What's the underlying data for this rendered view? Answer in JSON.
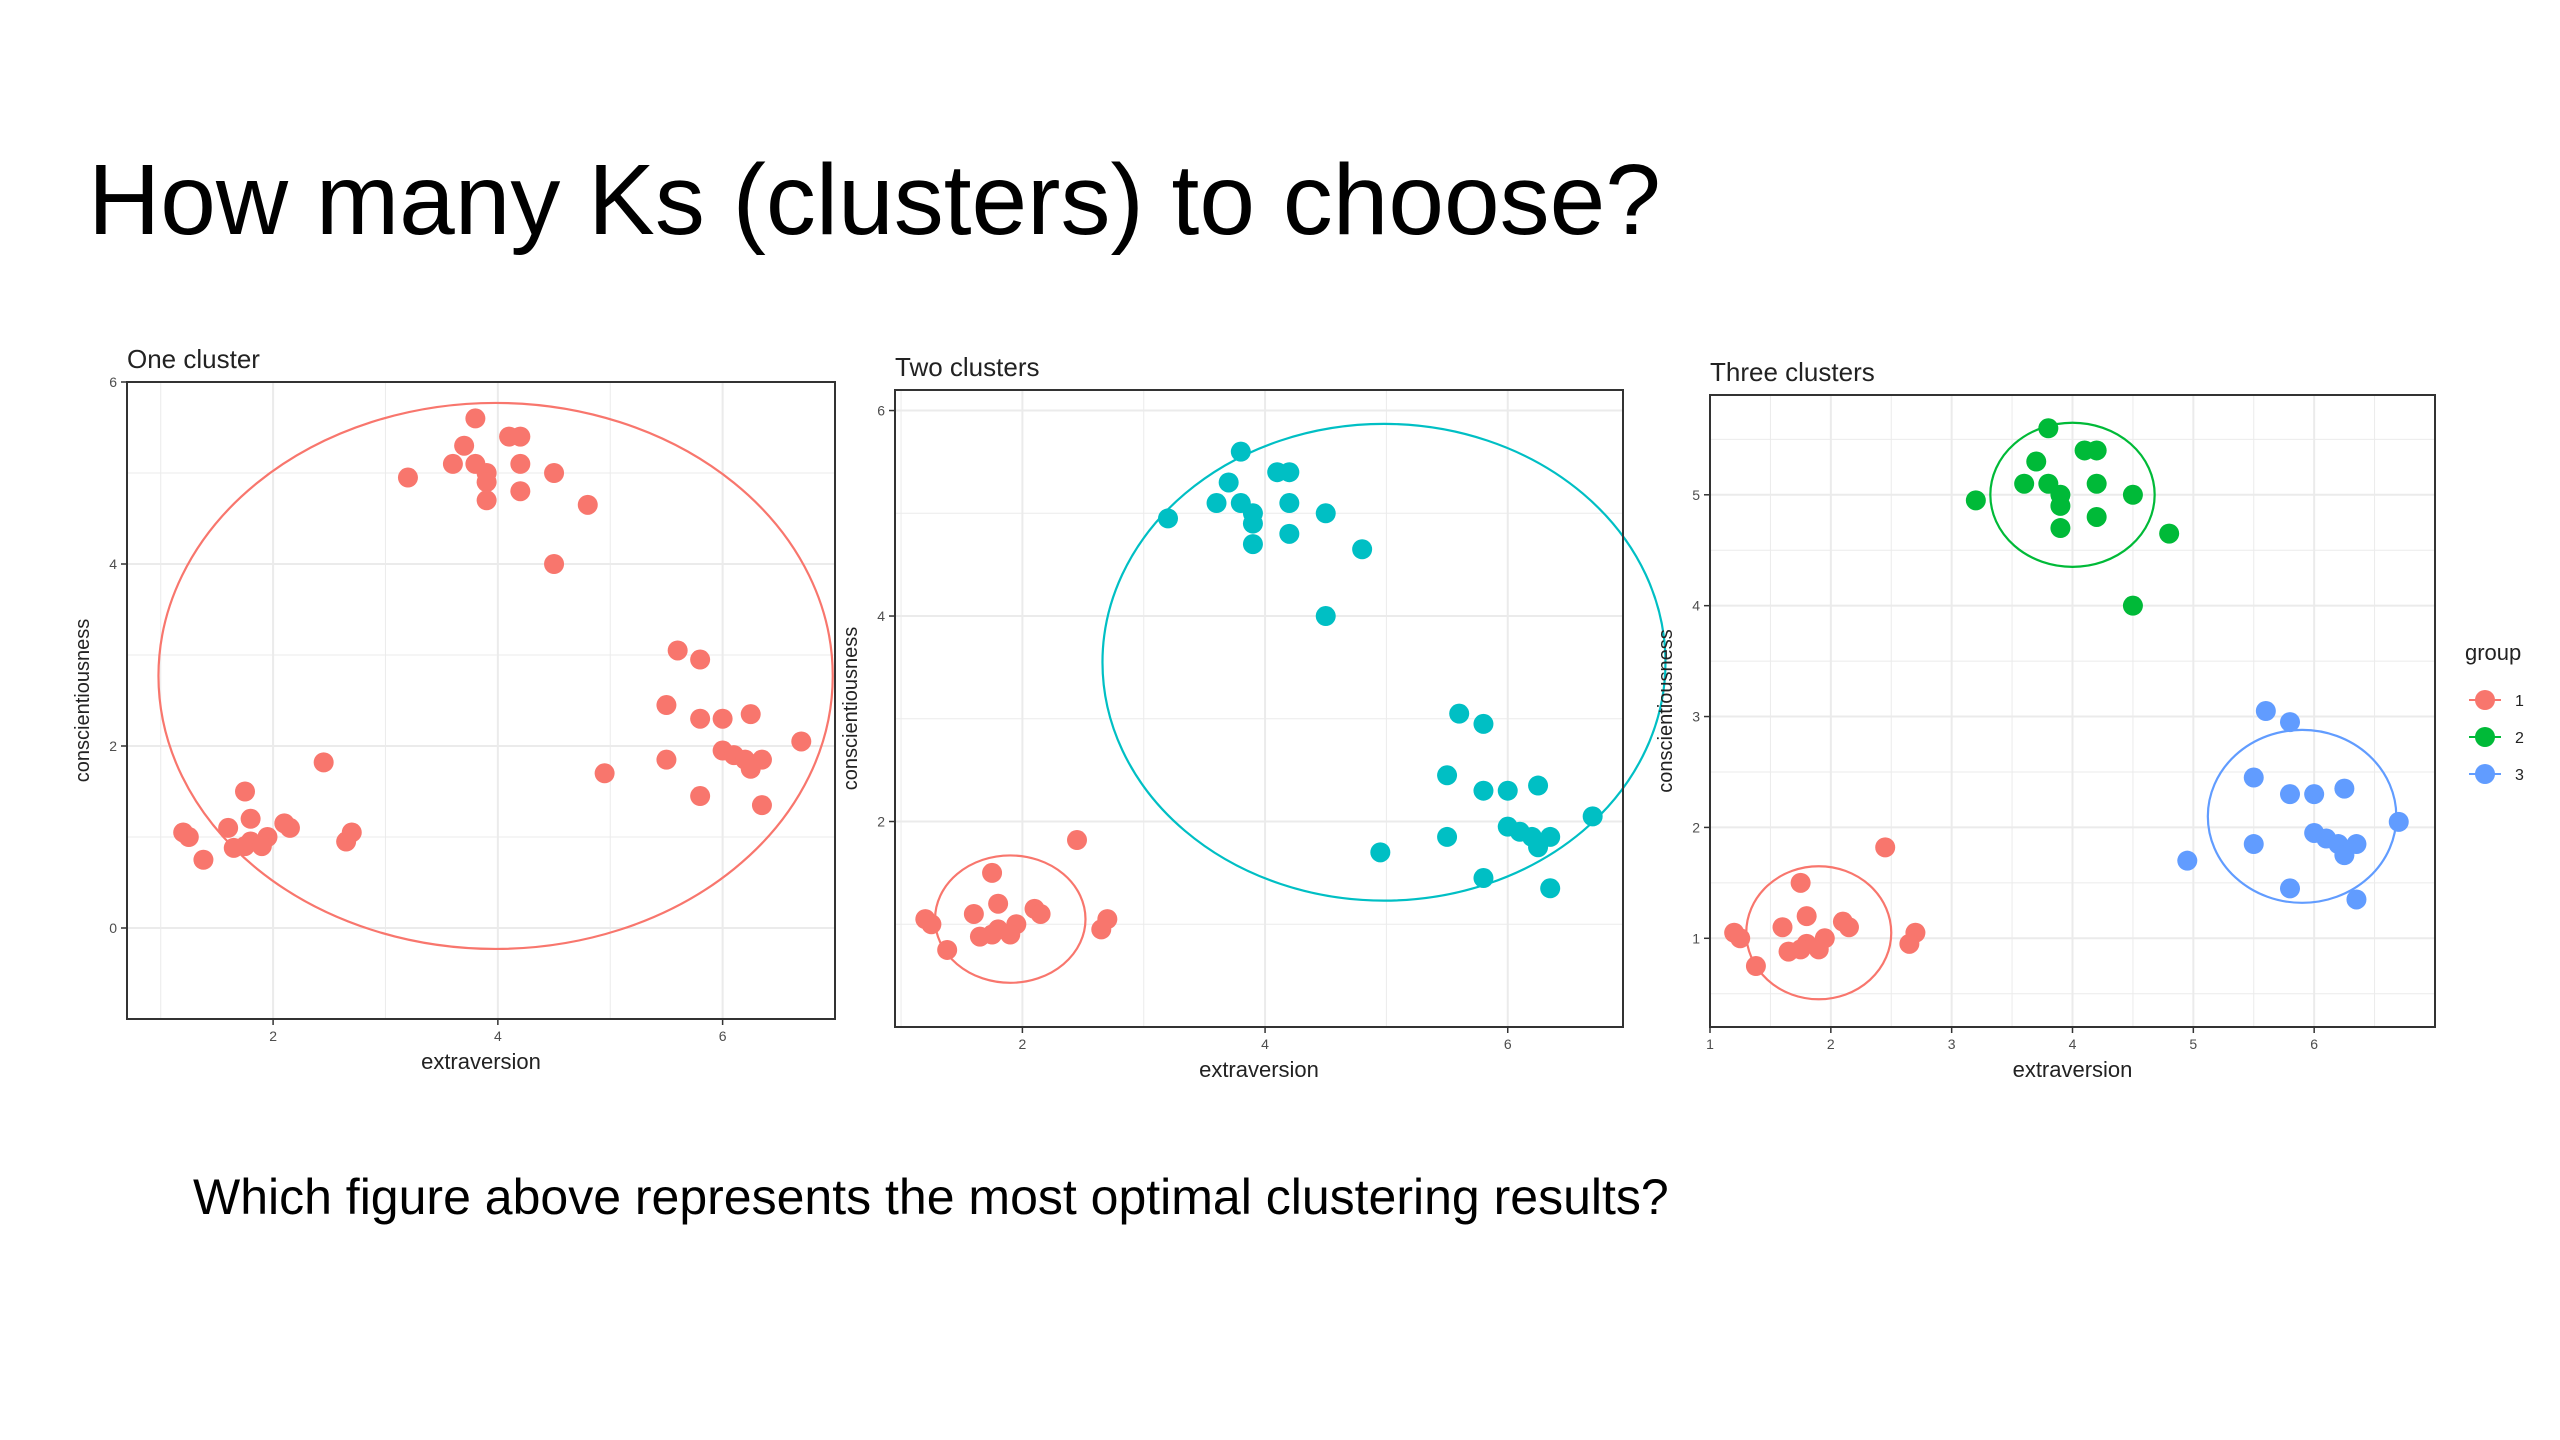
{
  "slide": {
    "title": "How many Ks (clusters) to choose?",
    "question": "Which figure above represents the most optimal clustering results?"
  },
  "colors": {
    "group1": "#F8766D",
    "group2": "#00BA38",
    "group3": "#619CFF",
    "teal": "#00BFC4",
    "grid": "#EBEBEB",
    "panel_border": "#333333"
  },
  "legend": {
    "title": "group",
    "entries": [
      {
        "label": "1",
        "color": "#F8766D"
      },
      {
        "label": "2",
        "color": "#00BA38"
      },
      {
        "label": "3",
        "color": "#619CFF"
      }
    ]
  },
  "chart_data": [
    {
      "type": "scatter",
      "title": "One cluster",
      "xlabel": "extraversion",
      "ylabel": "conscientiousness",
      "xlim": [
        0.7,
        7.0
      ],
      "ylim": [
        -1.0,
        6.0
      ],
      "xticks": [
        2,
        4,
        6
      ],
      "yticks": [
        0,
        2,
        4,
        6
      ],
      "grid": true,
      "points": [
        {
          "x": 3.8,
          "y": 5.6,
          "g": 1
        },
        {
          "x": 3.7,
          "y": 5.3,
          "g": 1
        },
        {
          "x": 4.1,
          "y": 5.4,
          "g": 1
        },
        {
          "x": 4.2,
          "y": 5.4,
          "g": 1
        },
        {
          "x": 3.6,
          "y": 5.1,
          "g": 1
        },
        {
          "x": 3.8,
          "y": 5.1,
          "g": 1
        },
        {
          "x": 3.9,
          "y": 5.0,
          "g": 1
        },
        {
          "x": 4.2,
          "y": 5.1,
          "g": 1
        },
        {
          "x": 3.2,
          "y": 4.95,
          "g": 1
        },
        {
          "x": 3.9,
          "y": 4.9,
          "g": 1
        },
        {
          "x": 4.5,
          "y": 5.0,
          "g": 1
        },
        {
          "x": 4.2,
          "y": 4.8,
          "g": 1
        },
        {
          "x": 3.9,
          "y": 4.7,
          "g": 1
        },
        {
          "x": 4.8,
          "y": 4.65,
          "g": 1
        },
        {
          "x": 4.5,
          "y": 4.0,
          "g": 1
        },
        {
          "x": 5.6,
          "y": 3.05,
          "g": 1
        },
        {
          "x": 5.8,
          "y": 2.95,
          "g": 1
        },
        {
          "x": 5.5,
          "y": 2.45,
          "g": 1
        },
        {
          "x": 5.8,
          "y": 2.3,
          "g": 1
        },
        {
          "x": 6.0,
          "y": 2.3,
          "g": 1
        },
        {
          "x": 6.25,
          "y": 2.35,
          "g": 1
        },
        {
          "x": 6.7,
          "y": 2.05,
          "g": 1
        },
        {
          "x": 6.0,
          "y": 1.95,
          "g": 1
        },
        {
          "x": 6.1,
          "y": 1.9,
          "g": 1
        },
        {
          "x": 6.2,
          "y": 1.85,
          "g": 1
        },
        {
          "x": 6.35,
          "y": 1.85,
          "g": 1
        },
        {
          "x": 5.5,
          "y": 1.85,
          "g": 1
        },
        {
          "x": 6.25,
          "y": 1.75,
          "g": 1
        },
        {
          "x": 4.95,
          "y": 1.7,
          "g": 1
        },
        {
          "x": 5.8,
          "y": 1.45,
          "g": 1
        },
        {
          "x": 6.35,
          "y": 1.35,
          "g": 1
        },
        {
          "x": 2.45,
          "y": 1.82,
          "g": 1
        },
        {
          "x": 1.75,
          "y": 1.5,
          "g": 1
        },
        {
          "x": 1.8,
          "y": 1.2,
          "g": 1
        },
        {
          "x": 1.6,
          "y": 1.1,
          "g": 1
        },
        {
          "x": 2.1,
          "y": 1.15,
          "g": 1
        },
        {
          "x": 2.15,
          "y": 1.1,
          "g": 1
        },
        {
          "x": 1.2,
          "y": 1.05,
          "g": 1
        },
        {
          "x": 1.25,
          "y": 1.0,
          "g": 1
        },
        {
          "x": 1.95,
          "y": 1.0,
          "g": 1
        },
        {
          "x": 1.8,
          "y": 0.95,
          "g": 1
        },
        {
          "x": 1.75,
          "y": 0.9,
          "g": 1
        },
        {
          "x": 1.9,
          "y": 0.9,
          "g": 1
        },
        {
          "x": 1.65,
          "y": 0.88,
          "g": 1
        },
        {
          "x": 2.7,
          "y": 1.05,
          "g": 1
        },
        {
          "x": 2.65,
          "y": 0.95,
          "g": 1
        },
        {
          "x": 1.38,
          "y": 0.75,
          "g": 1
        }
      ],
      "ellipses": [
        {
          "cx": 3.98,
          "cy": 2.77,
          "rx": 3.0,
          "ry": 3.0,
          "color": "#F8766D"
        }
      ]
    },
    {
      "type": "scatter",
      "title": "Two clusters",
      "xlabel": "extraversion",
      "ylabel": "conscientiousness",
      "xlim": [
        0.95,
        6.95
      ],
      "ylim": [
        0.0,
        6.2
      ],
      "xticks": [
        2,
        4,
        6
      ],
      "yticks": [
        2,
        4,
        6
      ],
      "grid": true,
      "points": [
        {
          "x": 3.8,
          "y": 5.6,
          "g": 2
        },
        {
          "x": 3.7,
          "y": 5.3,
          "g": 2
        },
        {
          "x": 4.1,
          "y": 5.4,
          "g": 2
        },
        {
          "x": 4.2,
          "y": 5.4,
          "g": 2
        },
        {
          "x": 3.6,
          "y": 5.1,
          "g": 2
        },
        {
          "x": 3.8,
          "y": 5.1,
          "g": 2
        },
        {
          "x": 3.9,
          "y": 5.0,
          "g": 2
        },
        {
          "x": 4.2,
          "y": 5.1,
          "g": 2
        },
        {
          "x": 3.2,
          "y": 4.95,
          "g": 2
        },
        {
          "x": 3.9,
          "y": 4.9,
          "g": 2
        },
        {
          "x": 4.5,
          "y": 5.0,
          "g": 2
        },
        {
          "x": 4.2,
          "y": 4.8,
          "g": 2
        },
        {
          "x": 3.9,
          "y": 4.7,
          "g": 2
        },
        {
          "x": 4.8,
          "y": 4.65,
          "g": 2
        },
        {
          "x": 4.5,
          "y": 4.0,
          "g": 2
        },
        {
          "x": 5.6,
          "y": 3.05,
          "g": 2
        },
        {
          "x": 5.8,
          "y": 2.95,
          "g": 2
        },
        {
          "x": 5.5,
          "y": 2.45,
          "g": 2
        },
        {
          "x": 5.8,
          "y": 2.3,
          "g": 2
        },
        {
          "x": 6.0,
          "y": 2.3,
          "g": 2
        },
        {
          "x": 6.25,
          "y": 2.35,
          "g": 2
        },
        {
          "x": 6.7,
          "y": 2.05,
          "g": 2
        },
        {
          "x": 6.0,
          "y": 1.95,
          "g": 2
        },
        {
          "x": 6.1,
          "y": 1.9,
          "g": 2
        },
        {
          "x": 6.2,
          "y": 1.85,
          "g": 2
        },
        {
          "x": 6.35,
          "y": 1.85,
          "g": 2
        },
        {
          "x": 5.5,
          "y": 1.85,
          "g": 2
        },
        {
          "x": 6.25,
          "y": 1.75,
          "g": 2
        },
        {
          "x": 4.95,
          "y": 1.7,
          "g": 2
        },
        {
          "x": 5.8,
          "y": 1.45,
          "g": 2
        },
        {
          "x": 6.35,
          "y": 1.35,
          "g": 2
        },
        {
          "x": 2.45,
          "y": 1.82,
          "g": 1
        },
        {
          "x": 1.75,
          "y": 1.5,
          "g": 1
        },
        {
          "x": 1.8,
          "y": 1.2,
          "g": 1
        },
        {
          "x": 1.6,
          "y": 1.1,
          "g": 1
        },
        {
          "x": 2.1,
          "y": 1.15,
          "g": 1
        },
        {
          "x": 2.15,
          "y": 1.1,
          "g": 1
        },
        {
          "x": 1.2,
          "y": 1.05,
          "g": 1
        },
        {
          "x": 1.25,
          "y": 1.0,
          "g": 1
        },
        {
          "x": 1.95,
          "y": 1.0,
          "g": 1
        },
        {
          "x": 1.8,
          "y": 0.95,
          "g": 1
        },
        {
          "x": 1.75,
          "y": 0.9,
          "g": 1
        },
        {
          "x": 1.9,
          "y": 0.9,
          "g": 1
        },
        {
          "x": 1.65,
          "y": 0.88,
          "g": 1
        },
        {
          "x": 2.7,
          "y": 1.05,
          "g": 1
        },
        {
          "x": 2.65,
          "y": 0.95,
          "g": 1
        },
        {
          "x": 1.38,
          "y": 0.75,
          "g": 1
        }
      ],
      "point_colors": {
        "1": "#F8766D",
        "2": "#00BFC4"
      },
      "ellipses": [
        {
          "cx": 1.9,
          "cy": 1.05,
          "rx": 0.62,
          "ry": 0.62,
          "color": "#F8766D"
        },
        {
          "cx": 4.98,
          "cy": 3.55,
          "rx": 2.32,
          "ry": 2.32,
          "color": "#00BFC4"
        }
      ]
    },
    {
      "type": "scatter",
      "title": "Three clusters",
      "xlabel": "extraversion",
      "ylabel": "conscientiousness",
      "xlim": [
        1.0,
        7.0
      ],
      "ylim": [
        0.2,
        5.9
      ],
      "xticks": [
        1,
        2,
        3,
        4,
        5,
        6
      ],
      "yticks": [
        1,
        2,
        3,
        4,
        5
      ],
      "grid": true,
      "points": [
        {
          "x": 3.8,
          "y": 5.6,
          "g": 2
        },
        {
          "x": 3.7,
          "y": 5.3,
          "g": 2
        },
        {
          "x": 4.1,
          "y": 5.4,
          "g": 2
        },
        {
          "x": 4.2,
          "y": 5.4,
          "g": 2
        },
        {
          "x": 3.6,
          "y": 5.1,
          "g": 2
        },
        {
          "x": 3.8,
          "y": 5.1,
          "g": 2
        },
        {
          "x": 3.9,
          "y": 5.0,
          "g": 2
        },
        {
          "x": 4.2,
          "y": 5.1,
          "g": 2
        },
        {
          "x": 3.2,
          "y": 4.95,
          "g": 2
        },
        {
          "x": 3.9,
          "y": 4.9,
          "g": 2
        },
        {
          "x": 4.5,
          "y": 5.0,
          "g": 2
        },
        {
          "x": 4.2,
          "y": 4.8,
          "g": 2
        },
        {
          "x": 3.9,
          "y": 4.7,
          "g": 2
        },
        {
          "x": 4.8,
          "y": 4.65,
          "g": 2
        },
        {
          "x": 4.5,
          "y": 4.0,
          "g": 2
        },
        {
          "x": 5.6,
          "y": 3.05,
          "g": 3
        },
        {
          "x": 5.8,
          "y": 2.95,
          "g": 3
        },
        {
          "x": 5.5,
          "y": 2.45,
          "g": 3
        },
        {
          "x": 5.8,
          "y": 2.3,
          "g": 3
        },
        {
          "x": 6.0,
          "y": 2.3,
          "g": 3
        },
        {
          "x": 6.25,
          "y": 2.35,
          "g": 3
        },
        {
          "x": 6.7,
          "y": 2.05,
          "g": 3
        },
        {
          "x": 6.0,
          "y": 1.95,
          "g": 3
        },
        {
          "x": 6.1,
          "y": 1.9,
          "g": 3
        },
        {
          "x": 6.2,
          "y": 1.85,
          "g": 3
        },
        {
          "x": 6.35,
          "y": 1.85,
          "g": 3
        },
        {
          "x": 5.5,
          "y": 1.85,
          "g": 3
        },
        {
          "x": 6.25,
          "y": 1.75,
          "g": 3
        },
        {
          "x": 4.95,
          "y": 1.7,
          "g": 3
        },
        {
          "x": 5.8,
          "y": 1.45,
          "g": 3
        },
        {
          "x": 6.35,
          "y": 1.35,
          "g": 3
        },
        {
          "x": 2.45,
          "y": 1.82,
          "g": 1
        },
        {
          "x": 1.75,
          "y": 1.5,
          "g": 1
        },
        {
          "x": 1.8,
          "y": 1.2,
          "g": 1
        },
        {
          "x": 1.6,
          "y": 1.1,
          "g": 1
        },
        {
          "x": 2.1,
          "y": 1.15,
          "g": 1
        },
        {
          "x": 2.15,
          "y": 1.1,
          "g": 1
        },
        {
          "x": 1.2,
          "y": 1.05,
          "g": 1
        },
        {
          "x": 1.25,
          "y": 1.0,
          "g": 1
        },
        {
          "x": 1.95,
          "y": 1.0,
          "g": 1
        },
        {
          "x": 1.8,
          "y": 0.95,
          "g": 1
        },
        {
          "x": 1.75,
          "y": 0.9,
          "g": 1
        },
        {
          "x": 1.9,
          "y": 0.9,
          "g": 1
        },
        {
          "x": 1.65,
          "y": 0.88,
          "g": 1
        },
        {
          "x": 2.7,
          "y": 1.05,
          "g": 1
        },
        {
          "x": 2.65,
          "y": 0.95,
          "g": 1
        },
        {
          "x": 1.38,
          "y": 0.75,
          "g": 1
        }
      ],
      "point_colors": {
        "1": "#F8766D",
        "2": "#00BA38",
        "3": "#619CFF"
      },
      "ellipses": [
        {
          "cx": 1.9,
          "cy": 1.05,
          "rx": 0.6,
          "ry": 0.6,
          "color": "#F8766D"
        },
        {
          "cx": 4.0,
          "cy": 5.0,
          "rx": 0.68,
          "ry": 0.65,
          "color": "#00BA38"
        },
        {
          "cx": 5.9,
          "cy": 2.1,
          "rx": 0.78,
          "ry": 0.78,
          "color": "#619CFF"
        }
      ],
      "legend": "right"
    }
  ]
}
